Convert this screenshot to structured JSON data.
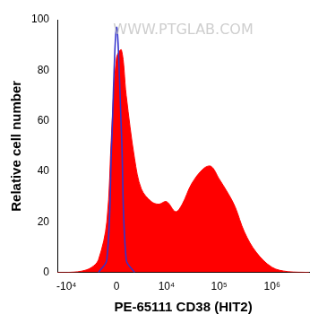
{
  "chart_data": {
    "type": "line",
    "x_label": "PE-65111 CD38 (HIT2)",
    "y_label": "Relative cell number",
    "annotations": [
      "WWW.PTGLAB.COM"
    ],
    "x": [
      -20000,
      -10000,
      -5000,
      -3000,
      -2000,
      -1000,
      -500,
      0,
      500,
      1000,
      2000,
      3000,
      5000,
      7000,
      10000,
      15000,
      20000,
      30000,
      50000,
      70000,
      100000,
      150000,
      200000,
      300000,
      500000,
      1000000,
      2000000,
      5000000
    ],
    "series": [
      {
        "type": "area",
        "color": "#ff0000",
        "values": [
          0,
          0,
          0.5,
          2,
          5,
          20,
          55,
          85,
          88,
          70,
          45,
          33,
          28,
          27,
          28,
          24,
          27,
          35,
          41,
          42,
          37,
          31,
          26,
          16,
          8,
          2,
          0.3,
          0
        ]
      },
      {
        "type": "line",
        "color": "#3333cc",
        "values": [
          null,
          null,
          null,
          null,
          0,
          5,
          50,
          97,
          55,
          5,
          0,
          null,
          null,
          null,
          null,
          null,
          null,
          null,
          null,
          null,
          null,
          null,
          null,
          null,
          null,
          null,
          null,
          null
        ]
      }
    ],
    "xlim": [
      -15000,
      5000000
    ],
    "xticks": [
      {
        "value": -10000,
        "label": "-10⁴"
      },
      0,
      {
        "value": 10000,
        "label": "10⁴"
      },
      {
        "value": 100000,
        "label": "10⁵"
      },
      {
        "value": 1000000,
        "label": "10⁶"
      }
    ],
    "ylim": [
      0,
      100
    ],
    "yticks": [
      0,
      20,
      40,
      60,
      80,
      100
    ],
    "grid": false
  }
}
